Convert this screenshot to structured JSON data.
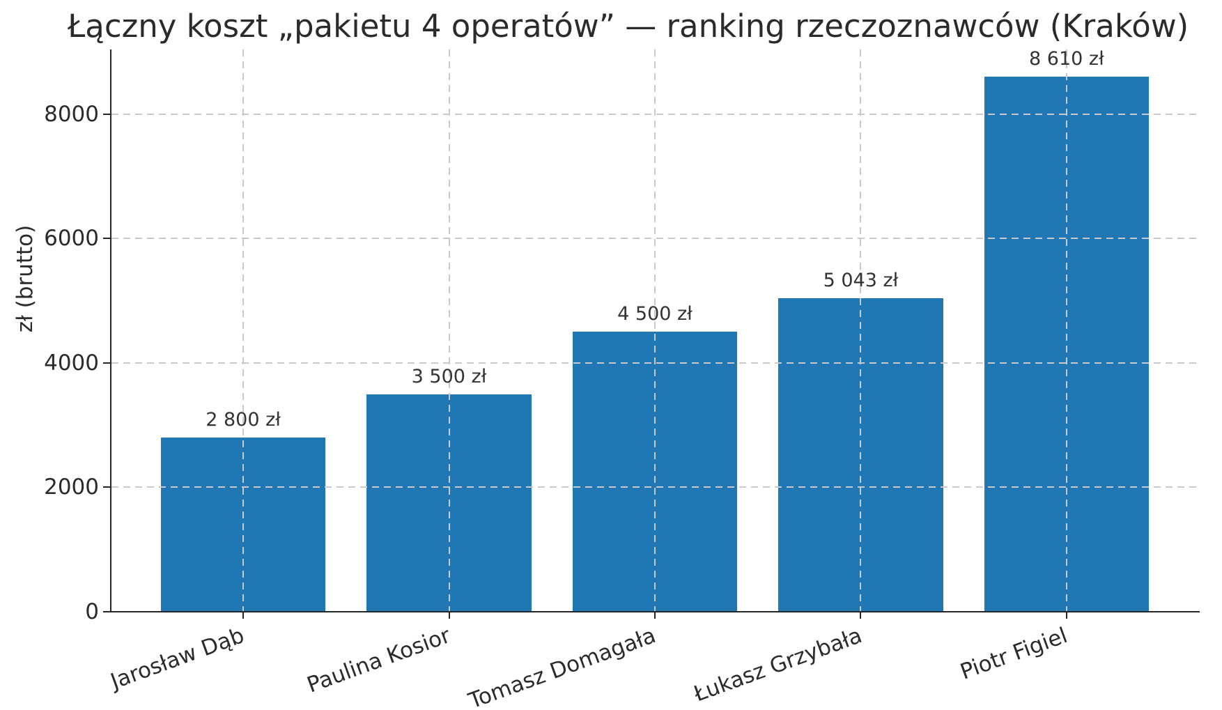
{
  "title": "Łączny koszt „pakietu 4 operatów” — ranking rzeczoznawców (Kraków)",
  "chart_data": {
    "type": "bar",
    "title": "Łączny koszt „pakietu 4 operatów” — ranking rzeczoznawców (Kraków)",
    "categories": [
      "Jarosław Dąb",
      "Paulina Kosior",
      "Tomasz Domagała",
      "Łukasz Grzybała",
      "Piotr Figiel"
    ],
    "values": [
      2800,
      3500,
      4500,
      5043,
      8610
    ],
    "value_labels": [
      "2 800 zł",
      "3 500 zł",
      "4 500 zł",
      "5 043 zł",
      "8 610 zł"
    ],
    "xlabel": "",
    "ylabel": "zł (brutto)",
    "yticks": [
      0,
      2000,
      4000,
      6000,
      8000
    ],
    "ytick_labels": [
      "0",
      "2000",
      "4000",
      "6000",
      "8000"
    ],
    "ylim": [
      0,
      9042
    ],
    "bar_color": "#1f77b4",
    "grid": "both, dashed, light-gray, drawn above bars",
    "legend_position": "none",
    "x_tick_rotation_deg": 20
  }
}
